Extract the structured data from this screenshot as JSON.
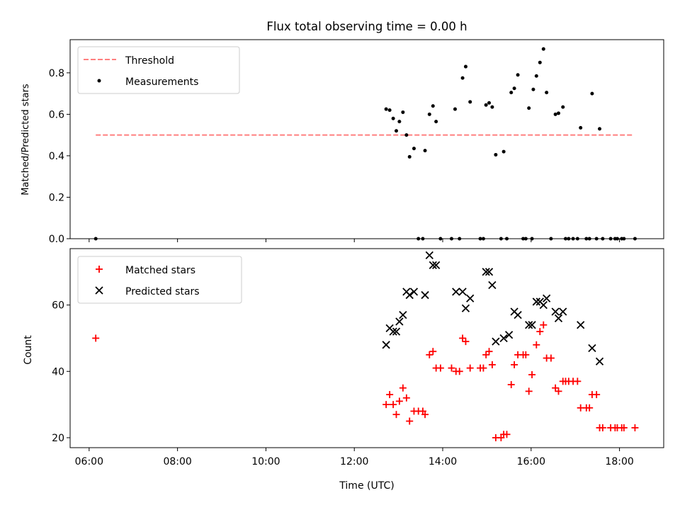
{
  "colors": {
    "threshold": "#ff7f7f",
    "measurement": "#000000",
    "matched": "#ff0000",
    "predicted": "#000000"
  },
  "chart_data": [
    {
      "type": "scatter",
      "title": "Flux total observing time = 0.00 h",
      "xlabel": "",
      "ylabel": "Matched/Predicted stars",
      "xlim": [
        5.57,
        19.0
      ],
      "ylim": [
        0.0,
        0.96
      ],
      "yticks": [
        "0.0",
        "0.2",
        "0.4",
        "0.6",
        "0.8"
      ],
      "ytick_values": [
        0.0,
        0.2,
        0.4,
        0.6,
        0.8
      ],
      "grid": false,
      "legend_position": "upper left",
      "legend": [
        "Threshold",
        "Measurements"
      ],
      "threshold": {
        "name": "Threshold",
        "x": [
          6.15,
          18.3
        ],
        "y": 0.5,
        "style": "dashed"
      },
      "series": [
        {
          "name": "Measurements",
          "marker": "dot",
          "points": [
            [
              6.15,
              0.0
            ],
            [
              12.72,
              0.625
            ],
            [
              12.8,
              0.62
            ],
            [
              12.88,
              0.58
            ],
            [
              12.95,
              0.52
            ],
            [
              13.02,
              0.565
            ],
            [
              13.1,
              0.61
            ],
            [
              13.18,
              0.5
            ],
            [
              13.25,
              0.395
            ],
            [
              13.35,
              0.435
            ],
            [
              13.45,
              0.0
            ],
            [
              13.55,
              0.0
            ],
            [
              13.6,
              0.425
            ],
            [
              13.7,
              0.6
            ],
            [
              13.78,
              0.64
            ],
            [
              13.85,
              0.565
            ],
            [
              13.95,
              0.0
            ],
            [
              14.2,
              0.0
            ],
            [
              14.28,
              0.625
            ],
            [
              14.38,
              0.0
            ],
            [
              14.45,
              0.775
            ],
            [
              14.52,
              0.83
            ],
            [
              14.62,
              0.66
            ],
            [
              14.85,
              0.0
            ],
            [
              14.92,
              0.0
            ],
            [
              14.98,
              0.645
            ],
            [
              15.05,
              0.655
            ],
            [
              15.12,
              0.635
            ],
            [
              15.2,
              0.405
            ],
            [
              15.32,
              0.0
            ],
            [
              15.38,
              0.42
            ],
            [
              15.45,
              0.0
            ],
            [
              15.55,
              0.705
            ],
            [
              15.62,
              0.725
            ],
            [
              15.7,
              0.79
            ],
            [
              15.82,
              0.0
            ],
            [
              15.88,
              0.0
            ],
            [
              15.95,
              0.63
            ],
            [
              16.02,
              0.0
            ],
            [
              16.05,
              0.72
            ],
            [
              16.12,
              0.785
            ],
            [
              16.2,
              0.85
            ],
            [
              16.28,
              0.915
            ],
            [
              16.35,
              0.705
            ],
            [
              16.45,
              0.0
            ],
            [
              16.55,
              0.6
            ],
            [
              16.62,
              0.605
            ],
            [
              16.72,
              0.635
            ],
            [
              16.78,
              0.0
            ],
            [
              16.85,
              0.0
            ],
            [
              16.95,
              0.0
            ],
            [
              17.05,
              0.0
            ],
            [
              17.12,
              0.535
            ],
            [
              17.25,
              0.0
            ],
            [
              17.32,
              0.0
            ],
            [
              17.38,
              0.7
            ],
            [
              17.48,
              0.0
            ],
            [
              17.55,
              0.53
            ],
            [
              17.62,
              0.0
            ],
            [
              17.8,
              0.0
            ],
            [
              17.9,
              0.0
            ],
            [
              17.95,
              0.0
            ],
            [
              18.05,
              0.0
            ],
            [
              18.1,
              0.0
            ],
            [
              18.35,
              0.0
            ]
          ]
        }
      ]
    },
    {
      "type": "scatter",
      "title": "",
      "xlabel": "Time (UTC)",
      "ylabel": "Count",
      "xlim": [
        5.57,
        19.0
      ],
      "ylim": [
        17.0,
        77.0
      ],
      "xticks": [
        "06:00",
        "08:00",
        "10:00",
        "12:00",
        "14:00",
        "16:00",
        "18:00"
      ],
      "xtick_values": [
        6,
        8,
        10,
        12,
        14,
        16,
        18
      ],
      "yticks": [
        "20",
        "40",
        "60"
      ],
      "ytick_values": [
        20,
        40,
        60
      ],
      "grid": false,
      "legend_position": "upper left",
      "legend": [
        "Matched stars",
        "Predicted stars"
      ],
      "series": [
        {
          "name": "Matched stars",
          "marker": "plus",
          "points": [
            [
              6.15,
              50
            ],
            [
              12.72,
              30
            ],
            [
              12.8,
              33
            ],
            [
              12.88,
              30
            ],
            [
              12.95,
              27
            ],
            [
              13.02,
              31
            ],
            [
              13.1,
              35
            ],
            [
              13.18,
              32
            ],
            [
              13.25,
              25
            ],
            [
              13.35,
              28
            ],
            [
              13.45,
              28
            ],
            [
              13.55,
              28
            ],
            [
              13.6,
              27
            ],
            [
              13.7,
              45
            ],
            [
              13.78,
              46
            ],
            [
              13.85,
              41
            ],
            [
              13.95,
              41
            ],
            [
              14.2,
              41
            ],
            [
              14.3,
              40
            ],
            [
              14.38,
              40
            ],
            [
              14.45,
              50
            ],
            [
              14.52,
              49
            ],
            [
              14.62,
              41
            ],
            [
              14.85,
              41
            ],
            [
              14.92,
              41
            ],
            [
              14.98,
              45
            ],
            [
              15.05,
              46
            ],
            [
              15.12,
              42
            ],
            [
              15.2,
              20
            ],
            [
              15.32,
              20
            ],
            [
              15.38,
              21
            ],
            [
              15.45,
              21
            ],
            [
              15.55,
              36
            ],
            [
              15.62,
              42
            ],
            [
              15.7,
              45
            ],
            [
              15.82,
              45
            ],
            [
              15.88,
              45
            ],
            [
              15.95,
              34
            ],
            [
              16.02,
              39
            ],
            [
              16.12,
              48
            ],
            [
              16.2,
              52
            ],
            [
              16.28,
              54
            ],
            [
              16.35,
              44
            ],
            [
              16.45,
              44
            ],
            [
              16.55,
              35
            ],
            [
              16.62,
              34
            ],
            [
              16.72,
              37
            ],
            [
              16.78,
              37
            ],
            [
              16.85,
              37
            ],
            [
              16.95,
              37
            ],
            [
              17.05,
              37
            ],
            [
              17.12,
              29
            ],
            [
              17.25,
              29
            ],
            [
              17.32,
              29
            ],
            [
              17.38,
              33
            ],
            [
              17.48,
              33
            ],
            [
              17.55,
              23
            ],
            [
              17.62,
              23
            ],
            [
              17.8,
              23
            ],
            [
              17.9,
              23
            ],
            [
              17.95,
              23
            ],
            [
              18.05,
              23
            ],
            [
              18.1,
              23
            ],
            [
              18.35,
              23
            ]
          ]
        },
        {
          "name": "Predicted stars",
          "marker": "x",
          "points": [
            [
              12.72,
              48
            ],
            [
              12.8,
              53
            ],
            [
              12.88,
              52
            ],
            [
              12.95,
              52
            ],
            [
              13.02,
              55
            ],
            [
              13.1,
              57
            ],
            [
              13.18,
              64
            ],
            [
              13.25,
              63
            ],
            [
              13.35,
              64
            ],
            [
              13.6,
              63
            ],
            [
              13.7,
              75
            ],
            [
              13.78,
              72
            ],
            [
              13.85,
              72
            ],
            [
              14.3,
              64
            ],
            [
              14.45,
              64
            ],
            [
              14.52,
              59
            ],
            [
              14.62,
              62
            ],
            [
              14.98,
              70
            ],
            [
              15.05,
              70
            ],
            [
              15.12,
              66
            ],
            [
              15.2,
              49
            ],
            [
              15.38,
              50
            ],
            [
              15.5,
              51
            ],
            [
              15.62,
              58
            ],
            [
              15.7,
              57
            ],
            [
              15.95,
              54
            ],
            [
              16.02,
              54
            ],
            [
              16.12,
              61
            ],
            [
              16.2,
              61
            ],
            [
              16.28,
              60
            ],
            [
              16.35,
              62
            ],
            [
              16.55,
              58
            ],
            [
              16.62,
              56
            ],
            [
              16.72,
              58
            ],
            [
              17.12,
              54
            ],
            [
              17.38,
              47
            ],
            [
              17.55,
              43
            ]
          ]
        }
      ]
    }
  ]
}
